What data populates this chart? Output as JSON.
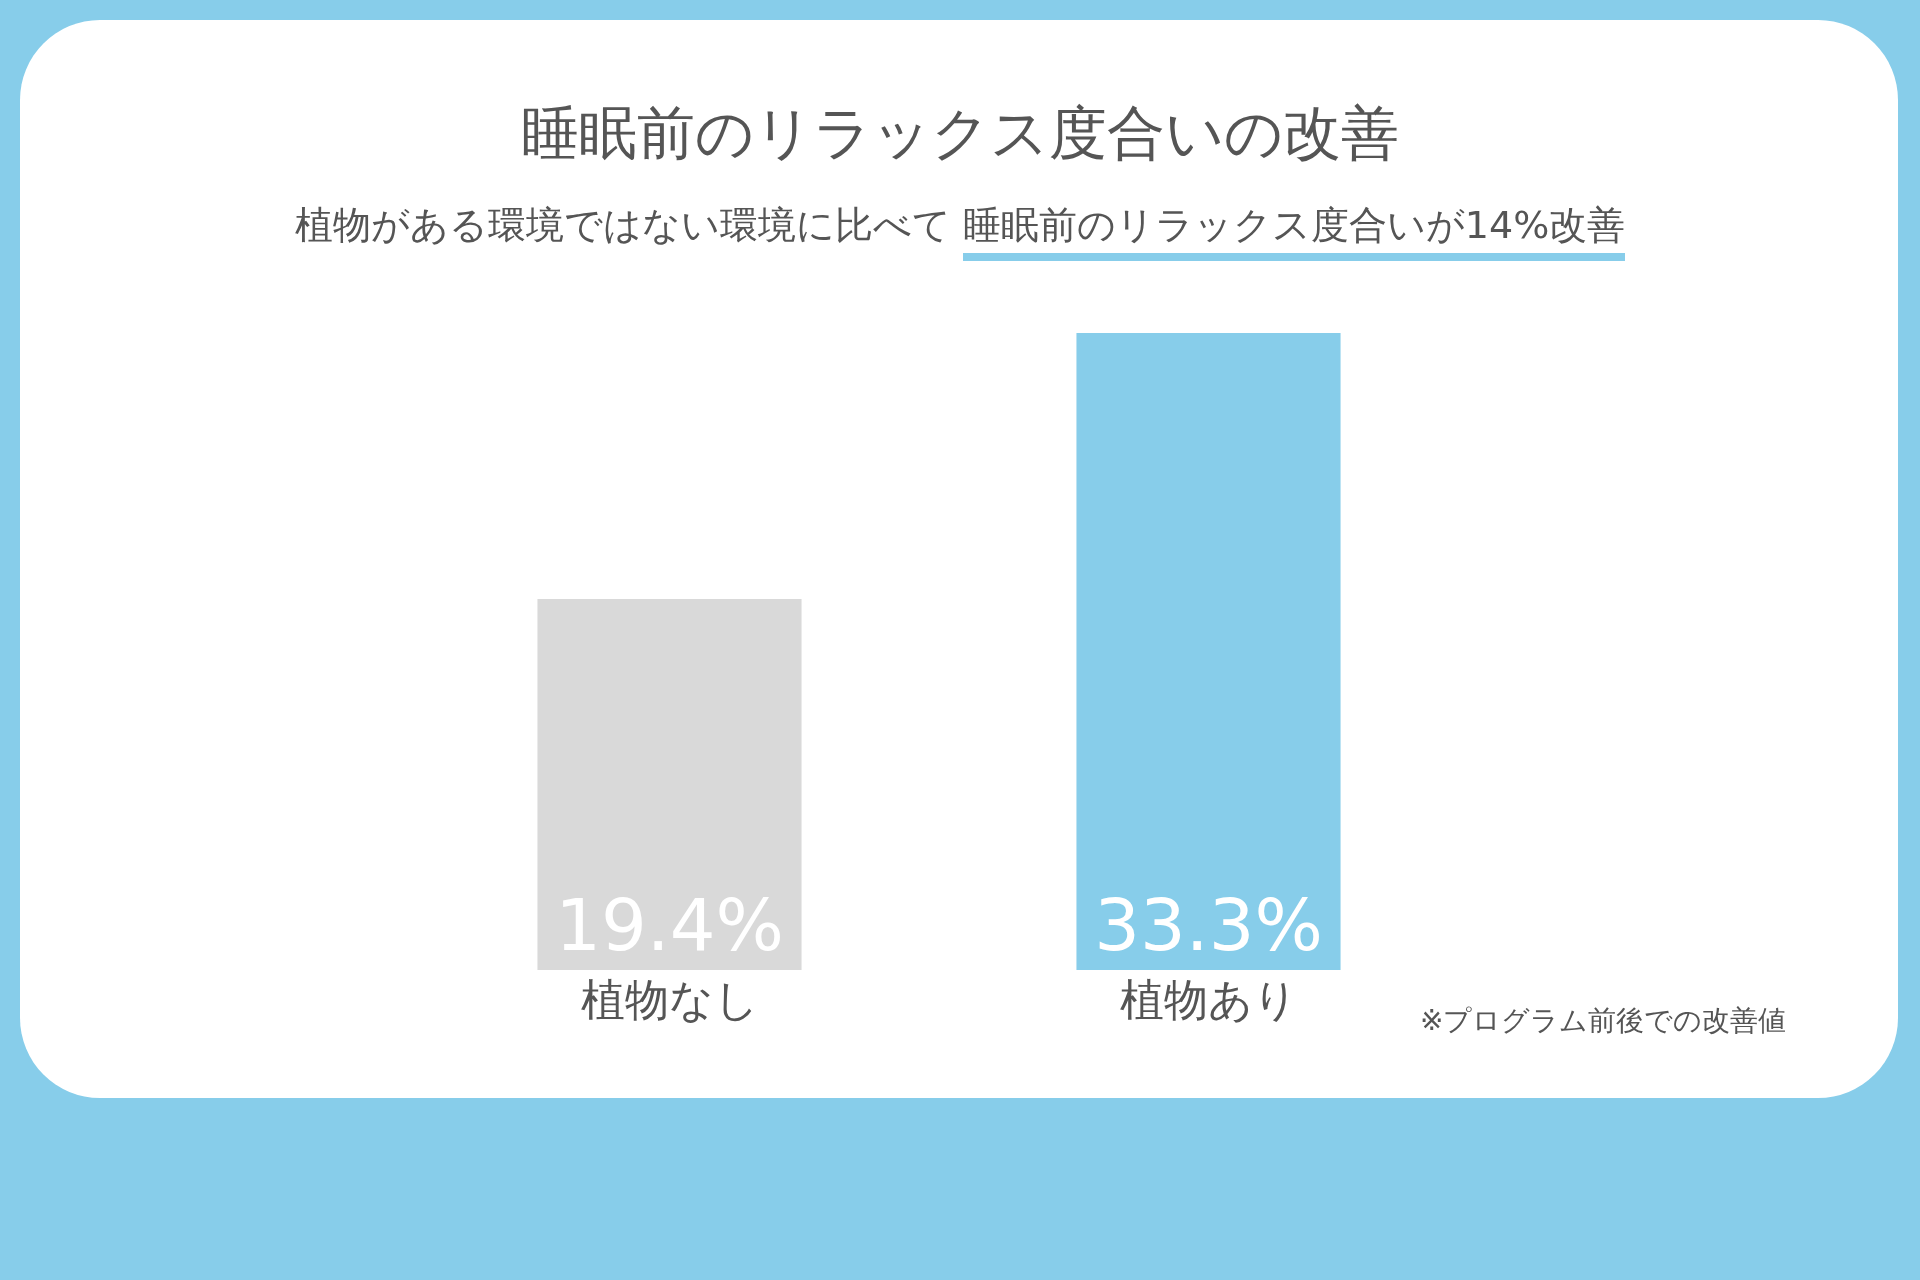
{
  "chart_data": {
    "type": "bar",
    "title": "睡眠前のリラックス度合いの改善",
    "subtitle": "植物がある環境ではない環境に比べて 睡眠前のリラックス度合いが14%改善",
    "categories": [
      "植物なし",
      "植物あり"
    ],
    "values": [
      19.4,
      33.3
    ],
    "colors": [
      "#d9d9d9",
      "#87cdea"
    ],
    "value_labels": [
      "19.4%",
      "33.3%"
    ],
    "annotations": [
      "※プログラム前後での改善値"
    ]
  }
}
